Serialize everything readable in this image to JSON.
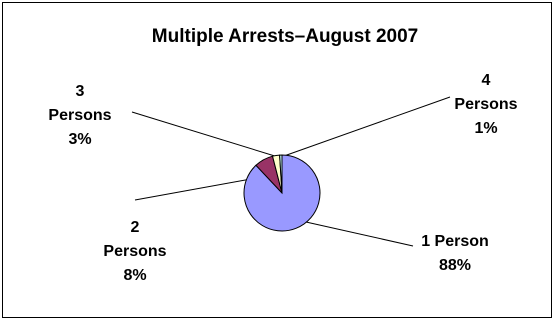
{
  "chart_data": {
    "type": "pie",
    "title": "Multiple Arrests–August 2007",
    "slices": [
      {
        "label_lines": [
          "1 Person"
        ],
        "value": 88,
        "pct_label": "88%",
        "color": "#9999ff"
      },
      {
        "label_lines": [
          "2",
          "Persons"
        ],
        "value": 8,
        "pct_label": "8%",
        "color": "#993366"
      },
      {
        "label_lines": [
          "3",
          "Persons"
        ],
        "value": 3,
        "pct_label": "3%",
        "color": "#ffffcc"
      },
      {
        "label_lines": [
          "4",
          "Persons"
        ],
        "value": 1,
        "pct_label": "1%",
        "color": "#ccffff"
      }
    ],
    "legend": "none",
    "grid": false
  }
}
